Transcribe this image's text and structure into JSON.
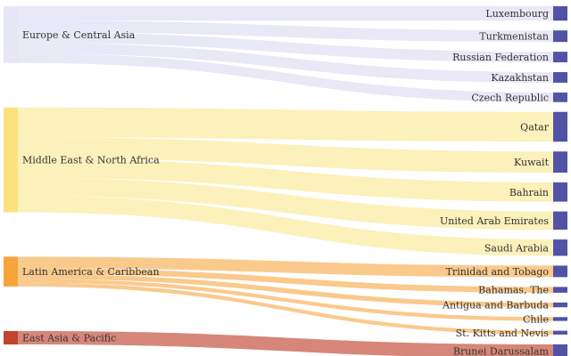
{
  "chart_data": {
    "type": "sankey",
    "title": "",
    "sources": [
      {
        "name": "Europe & Central Asia",
        "color": "#E6E6F6",
        "flow_color": "#E6E6F6"
      },
      {
        "name": "Middle East & North Africa",
        "color": "#FBE27E",
        "flow_color": "#FCEFB2"
      },
      {
        "name": "Latin America & Caribbean",
        "color": "#F6A43A",
        "flow_color": "#F9C37F"
      },
      {
        "name": "East Asia & Pacific",
        "color": "#C1452F",
        "flow_color": "#D27A6A"
      }
    ],
    "target_color": "#5253A6",
    "links": [
      {
        "source": "Europe & Central Asia",
        "target": "Luxembourg",
        "value": 15
      },
      {
        "source": "Europe & Central Asia",
        "target": "Turkmenistan",
        "value": 12
      },
      {
        "source": "Europe & Central Asia",
        "target": "Russian Federation",
        "value": 11
      },
      {
        "source": "Europe & Central Asia",
        "target": "Kazakhstan",
        "value": 11
      },
      {
        "source": "Europe & Central Asia",
        "target": "Czech Republic",
        "value": 10
      },
      {
        "source": "Middle East & North Africa",
        "target": "Qatar",
        "value": 31
      },
      {
        "source": "Middle East & North Africa",
        "target": "Kuwait",
        "value": 22
      },
      {
        "source": "Middle East & North Africa",
        "target": "Bahrain",
        "value": 20
      },
      {
        "source": "Middle East & North Africa",
        "target": "United Arab Emirates",
        "value": 19
      },
      {
        "source": "Middle East & North Africa",
        "target": "Saudi Arabia",
        "value": 17
      },
      {
        "source": "Latin America & Caribbean",
        "target": "Trinidad and Tobago",
        "value": 12
      },
      {
        "source": "Latin America & Caribbean",
        "target": "Bahamas, The",
        "value": 6
      },
      {
        "source": "Latin America & Caribbean",
        "target": "Antigua and Barbuda",
        "value": 5
      },
      {
        "source": "Latin America & Caribbean",
        "target": "Chile",
        "value": 4
      },
      {
        "source": "Latin America & Caribbean",
        "target": "St. Kitts and Nevis",
        "value": 4
      },
      {
        "source": "East Asia & Pacific",
        "target": "Brunei Darussalam",
        "value": 14
      }
    ]
  }
}
